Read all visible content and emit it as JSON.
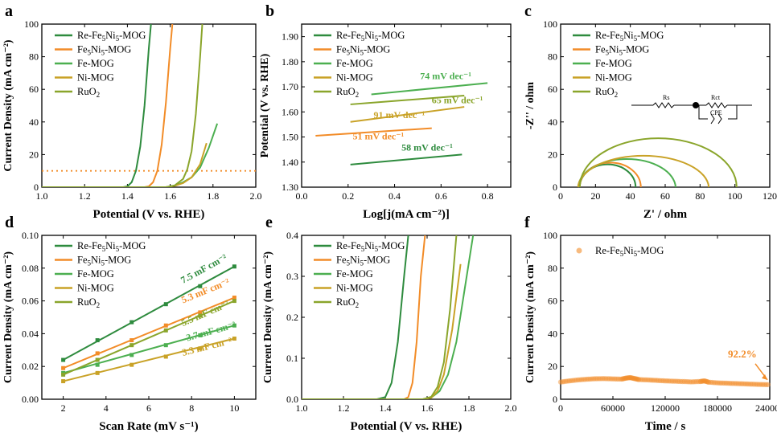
{
  "colors": {
    "re": "#2e8b3e",
    "fe5ni5": "#f28c28",
    "fe": "#4caf50",
    "ni": "#c9a227",
    "ruo2": "#8aa52b",
    "annotation": "#f28c28"
  },
  "legend_labels": [
    "Re-Fe5Ni5-MOG",
    "Fe5Ni5-MOG",
    "Fe-MOG",
    "Ni-MOG",
    "RuO2"
  ],
  "legend_html": [
    "Re-Fe<tspan dy='3' font-size='9'>5</tspan><tspan dy='-3'>Ni</tspan><tspan dy='3' font-size='9'>5</tspan><tspan dy='-3'>-MOG</tspan>",
    "Fe<tspan dy='3' font-size='9'>5</tspan><tspan dy='-3'>Ni</tspan><tspan dy='3' font-size='9'>5</tspan><tspan dy='-3'>-MOG</tspan>",
    "Fe-MOG",
    "Ni-MOG",
    "RuO<tspan dy='3' font-size='9'>2</tspan>"
  ],
  "chart_data": [
    {
      "panel": "a",
      "type": "line",
      "xlabel": "Potential (V vs. RHE)",
      "ylabel": "Current Density (mA cm⁻²)",
      "xlim": [
        1.0,
        2.0
      ],
      "ylim": [
        0,
        100
      ],
      "xticks": [
        1.0,
        1.2,
        1.4,
        1.6,
        1.8,
        2.0
      ],
      "yticks": [
        0,
        20,
        40,
        60,
        80,
        100
      ],
      "reference_line": {
        "y": 10,
        "style": "dotted",
        "color": "orange"
      },
      "series": [
        {
          "name": "Re-Fe5Ni5-MOG",
          "x": [
            1.0,
            1.38,
            1.4,
            1.42,
            1.44,
            1.46,
            1.48,
            1.5,
            1.51
          ],
          "y": [
            0,
            0,
            0.5,
            3,
            10,
            25,
            50,
            85,
            100
          ]
        },
        {
          "name": "Fe5Ni5-MOG",
          "x": [
            1.0,
            1.48,
            1.5,
            1.52,
            1.54,
            1.56,
            1.58,
            1.6,
            1.61
          ],
          "y": [
            0,
            0,
            0.5,
            3,
            10,
            26,
            52,
            85,
            100
          ]
        },
        {
          "name": "Fe-MOG",
          "x": [
            1.0,
            1.58,
            1.62,
            1.66,
            1.7,
            1.74,
            1.78,
            1.82
          ],
          "y": [
            0,
            0,
            1,
            3,
            6,
            12,
            24,
            39
          ]
        },
        {
          "name": "Ni-MOG",
          "x": [
            1.0,
            1.58,
            1.62,
            1.66,
            1.7,
            1.74,
            1.77
          ],
          "y": [
            0,
            0,
            0.8,
            2.5,
            6,
            14,
            27
          ]
        },
        {
          "name": "RuO2",
          "x": [
            1.0,
            1.58,
            1.62,
            1.66,
            1.68,
            1.7,
            1.72,
            1.74,
            1.75
          ],
          "y": [
            0,
            0,
            1,
            5,
            11,
            22,
            45,
            80,
            100
          ]
        }
      ]
    },
    {
      "panel": "b",
      "type": "line",
      "xlabel": "Log[j(mA cm⁻²)]",
      "ylabel": "Potential (V vs. RHE)",
      "xlim": [
        0.0,
        0.9
      ],
      "ylim": [
        1.3,
        1.95
      ],
      "xticks": [
        0.0,
        0.2,
        0.4,
        0.6,
        0.8
      ],
      "yticks": [
        1.3,
        1.4,
        1.5,
        1.6,
        1.7,
        1.8,
        1.9
      ],
      "series": [
        {
          "name": "Re-Fe5Ni5-MOG",
          "x": [
            0.21,
            0.69
          ],
          "y": [
            1.39,
            1.43
          ],
          "tafel": "58 mV dec⁻¹",
          "label_pos": [
            0.54,
            1.445
          ]
        },
        {
          "name": "Fe5Ni5-MOG",
          "x": [
            0.06,
            0.56
          ],
          "y": [
            1.505,
            1.535
          ],
          "tafel": "51 mV dec⁻¹",
          "label_pos": [
            0.33,
            1.49
          ]
        },
        {
          "name": "Fe-MOG",
          "x": [
            0.3,
            0.8
          ],
          "y": [
            1.67,
            1.715
          ],
          "tafel": "74 mV dec⁻¹",
          "label_pos": [
            0.62,
            1.73
          ]
        },
        {
          "name": "Ni-MOG",
          "x": [
            0.21,
            0.7
          ],
          "y": [
            1.56,
            1.62
          ],
          "tafel": "91 mV dec⁻¹",
          "label_pos": [
            0.42,
            1.575
          ]
        },
        {
          "name": "RuO2",
          "x": [
            0.21,
            0.7
          ],
          "y": [
            1.63,
            1.665
          ],
          "tafel": "65 mV dec⁻¹",
          "label_pos": [
            0.67,
            1.635
          ]
        }
      ]
    },
    {
      "panel": "c",
      "type": "line",
      "xlabel": "Z' / ohm",
      "ylabel": "-Z'' / ohm",
      "xlim": [
        0,
        120
      ],
      "ylim": [
        0,
        100
      ],
      "xticks": [
        0,
        20,
        40,
        60,
        80,
        100,
        120
      ],
      "yticks": [
        0,
        20,
        40,
        60,
        80,
        100
      ],
      "circuit_labels": [
        "Rs",
        "Rct",
        "CPE"
      ],
      "series": [
        {
          "name": "Re-Fe5Ni5-MOG",
          "arc": {
            "start": 11,
            "end": 43,
            "height": 14
          }
        },
        {
          "name": "Fe5Ni5-MOG",
          "arc": {
            "start": 11,
            "end": 46,
            "height": 15
          }
        },
        {
          "name": "Fe-MOG",
          "arc": {
            "start": 10,
            "end": 66,
            "height": 18
          }
        },
        {
          "name": "Ni-MOG",
          "arc": {
            "start": 10,
            "end": 85,
            "height": 20
          }
        },
        {
          "name": "RuO2",
          "arc": {
            "start": 11,
            "end": 101,
            "height": 30
          }
        }
      ]
    },
    {
      "panel": "d",
      "type": "scatter",
      "xlabel": "Scan Rate (mV s⁻¹)",
      "ylabel": "Current Density (mA cm⁻²)",
      "xlim": [
        1,
        11
      ],
      "ylim": [
        0.0,
        0.1
      ],
      "xticks": [
        2,
        4,
        6,
        8,
        10
      ],
      "yticks": [
        0.0,
        0.02,
        0.04,
        0.06,
        0.08,
        0.1
      ],
      "x": [
        2,
        3.6,
        5.2,
        6.8,
        8.4,
        10
      ],
      "series": [
        {
          "name": "Re-Fe5Ni5-MOG",
          "values": [
            0.024,
            0.036,
            0.047,
            0.058,
            0.069,
            0.081
          ],
          "cdl": "7.5 mF cm⁻²",
          "label_pos": [
            7.6,
            0.0705
          ]
        },
        {
          "name": "Fe5Ni5-MOG",
          "values": [
            0.019,
            0.028,
            0.036,
            0.045,
            0.053,
            0.062
          ],
          "cdl": "5.3 mF cm⁻²",
          "label_pos": [
            7.6,
            0.0585
          ]
        },
        {
          "name": "Fe-MOG",
          "values": [
            0.016,
            0.021,
            0.027,
            0.033,
            0.039,
            0.045
          ],
          "cdl": "3.7 mF cm⁻²",
          "label_pos": [
            7.8,
            0.0355
          ]
        },
        {
          "name": "Ni-MOG",
          "values": [
            0.011,
            0.016,
            0.021,
            0.026,
            0.031,
            0.037
          ],
          "cdl": "3.3 mF cm⁻²",
          "label_pos": [
            7.6,
            0.0265
          ]
        },
        {
          "name": "RuO2",
          "values": [
            0.015,
            0.024,
            0.033,
            0.042,
            0.051,
            0.06
          ],
          "cdl": "5.5 mF cm⁻²",
          "label_pos": [
            7.6,
            0.0445
          ]
        }
      ]
    },
    {
      "panel": "e",
      "type": "line",
      "xlabel": "Potential (V vs. RHE)",
      "ylabel": "Current Density (mA cm⁻²)",
      "xlim": [
        1.0,
        2.0
      ],
      "ylim": [
        0.0,
        0.4
      ],
      "xticks": [
        1.0,
        1.2,
        1.4,
        1.6,
        1.8,
        2.0
      ],
      "yticks": [
        0.0,
        0.1,
        0.2,
        0.3,
        0.4
      ],
      "series": [
        {
          "name": "Re-Fe5Ni5-MOG",
          "x": [
            1.0,
            1.36,
            1.4,
            1.43,
            1.46,
            1.49,
            1.51
          ],
          "y": [
            0,
            0,
            0.005,
            0.04,
            0.14,
            0.3,
            0.4
          ]
        },
        {
          "name": "Fe5Ni5-MOG",
          "x": [
            1.0,
            1.49,
            1.51,
            1.53,
            1.55,
            1.57,
            1.59
          ],
          "y": [
            0,
            0,
            0.005,
            0.04,
            0.14,
            0.3,
            0.4
          ]
        },
        {
          "name": "Fe-MOG",
          "x": [
            1.0,
            1.58,
            1.62,
            1.66,
            1.7,
            1.74,
            1.78,
            1.82
          ],
          "y": [
            0,
            0,
            0.004,
            0.02,
            0.06,
            0.14,
            0.27,
            0.4
          ]
        },
        {
          "name": "Ni-MOG",
          "x": [
            1.0,
            1.58,
            1.62,
            1.65,
            1.68,
            1.72,
            1.76
          ],
          "y": [
            0,
            0,
            0.004,
            0.02,
            0.06,
            0.17,
            0.33
          ]
        },
        {
          "name": "RuO2",
          "x": [
            1.0,
            1.58,
            1.62,
            1.65,
            1.68,
            1.71,
            1.74
          ],
          "y": [
            0,
            0,
            0.006,
            0.03,
            0.09,
            0.22,
            0.4
          ]
        }
      ]
    },
    {
      "panel": "f",
      "type": "scatter",
      "xlabel": "Time / s",
      "ylabel": "Current Density (mA cm⁻²)",
      "xlim": [
        0,
        240000
      ],
      "ylim": [
        0,
        100
      ],
      "xticks": [
        0,
        60000,
        120000,
        180000,
        240000
      ],
      "yticks": [
        0,
        20,
        40,
        60,
        80,
        100
      ],
      "annotation": "92.2%",
      "series": [
        {
          "name": "Re-Fe5Ni5-MOG",
          "x": [
            0,
            10000,
            20000,
            30000,
            40000,
            50000,
            60000,
            70000,
            75000,
            80000,
            85000,
            90000,
            100000,
            110000,
            120000,
            130000,
            140000,
            150000,
            160000,
            165000,
            170000,
            180000,
            190000,
            200000,
            210000,
            220000,
            230000,
            240000
          ],
          "y": [
            10.5,
            11.2,
            11.8,
            12.2,
            12.5,
            12.6,
            12.4,
            12.3,
            12.9,
            13.2,
            12.6,
            12.0,
            11.8,
            11.5,
            11.2,
            11.0,
            10.8,
            10.6,
            10.8,
            11.2,
            10.4,
            10.0,
            9.8,
            9.6,
            9.4,
            9.2,
            9.0,
            8.9
          ]
        }
      ]
    }
  ]
}
